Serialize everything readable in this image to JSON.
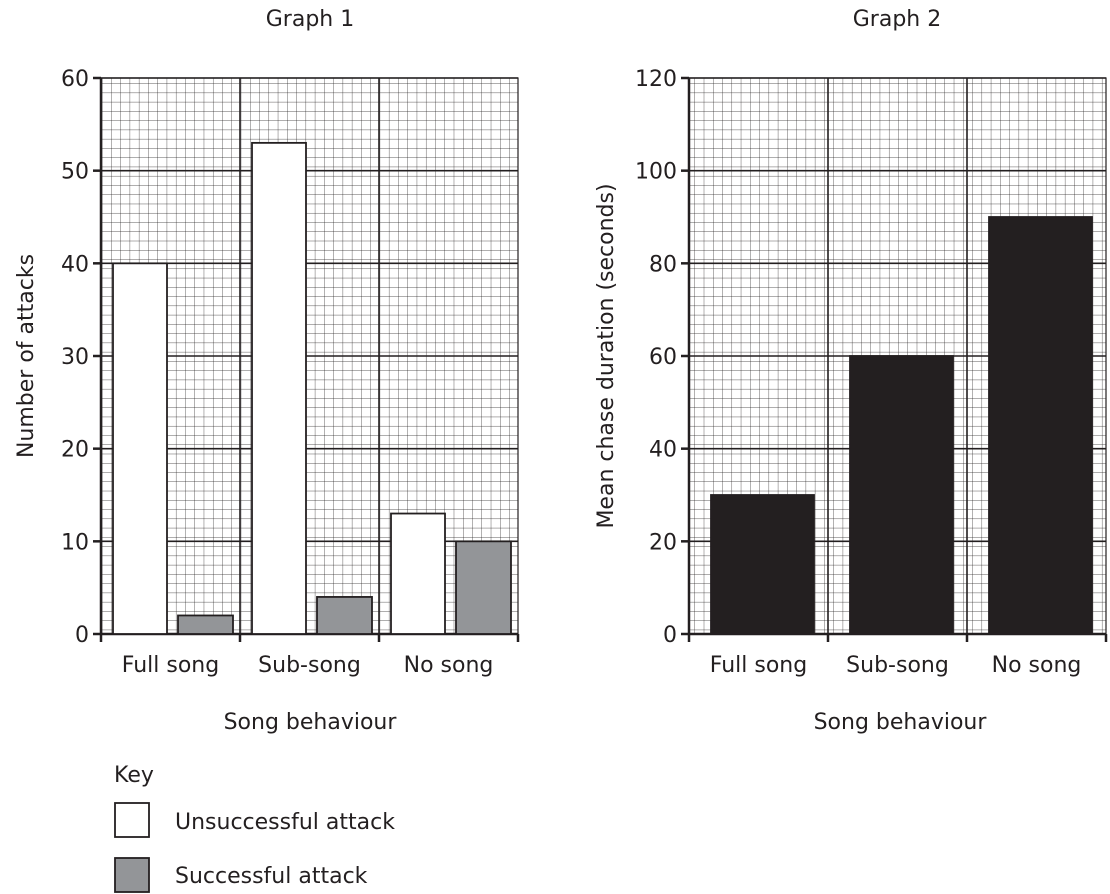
{
  "chart_data": [
    {
      "type": "bar",
      "title": "Graph 1",
      "xlabel": "Song behaviour",
      "ylabel": "Number of attacks",
      "ylim": [
        0,
        60
      ],
      "yticks": [
        0,
        10,
        20,
        30,
        40,
        50,
        60
      ],
      "grid": true,
      "categories": [
        "Full song",
        "Sub-song",
        "No song"
      ],
      "series": [
        {
          "name": "Unsuccessful attack",
          "color": "#ffffff",
          "values": [
            40,
            53,
            13
          ]
        },
        {
          "name": "Successful attack",
          "color": "#939598",
          "values": [
            2,
            4,
            10
          ]
        }
      ],
      "legend": {
        "title": "Key",
        "position": "bottom-left"
      }
    },
    {
      "type": "bar",
      "title": "Graph 2",
      "xlabel": "Song behaviour",
      "ylabel": "Mean chase duration (seconds)",
      "ylim": [
        0,
        120
      ],
      "yticks": [
        0,
        20,
        40,
        60,
        80,
        100,
        120
      ],
      "grid": true,
      "categories": [
        "Full song",
        "Sub-song",
        "No song"
      ],
      "series": [
        {
          "color": "#231f20",
          "values": [
            30,
            60,
            90
          ]
        }
      ]
    }
  ]
}
